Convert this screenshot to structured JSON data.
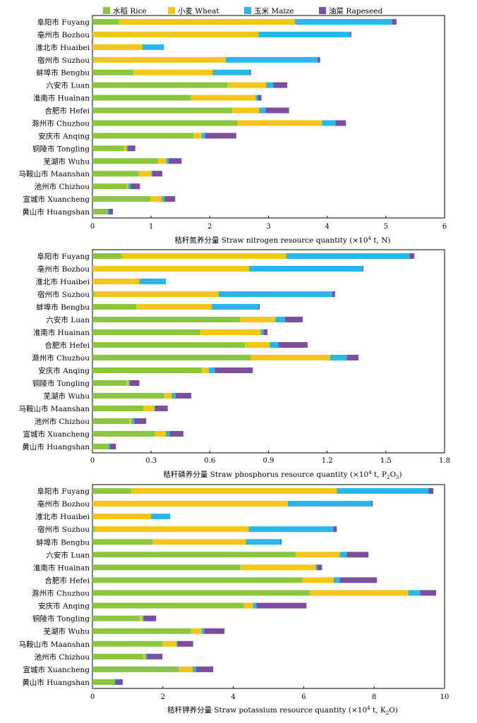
{
  "legend": [
    {
      "label": "水稻 Rice",
      "color": "#8cc63f"
    },
    {
      "label": "小麦 Wheat",
      "color": "#f5c518"
    },
    {
      "label": "玉米 Maize",
      "color": "#29b6e8"
    },
    {
      "label": "油菜 Rapeseed",
      "color": "#7d4e9e"
    }
  ],
  "chart_data": [
    {
      "type": "bar",
      "orientation": "horizontal",
      "stacked": true,
      "xlabel_main": "秸秆氮养分量 Straw nitrogen resource quantity (×10",
      "xlabel_sup": "4",
      "xlabel_tail": " t, N)",
      "xlabel_sub": "",
      "xlabel_tail2": "",
      "xlim": [
        0,
        6
      ],
      "xticks": [
        "0",
        "1",
        "2",
        "3",
        "4",
        "5",
        "6"
      ],
      "categories": [
        "阜阳市 Fuyang",
        "亳州市 Bozhou",
        "淮北市 Huaibei",
        "宿州市 Suzhou",
        "蚌埠市 Bengbu",
        "六安市 Luan",
        "淮南市 Huainan",
        "合肥市 Hefei",
        "滁州市 Chuzhou",
        "安庆市 Anqing",
        "铜陵市 Tongling",
        "芜湖市 Wuhu",
        "马鞍山市 Maanshan",
        "池州市 Chizhou",
        "宣城市 Xuancheng",
        "黄山市 Huangshan"
      ],
      "series": [
        {
          "name": "水稻 Rice",
          "values": [
            0.45,
            0.0,
            0.0,
            0.02,
            0.7,
            2.3,
            1.68,
            2.38,
            2.47,
            1.72,
            0.54,
            1.12,
            0.79,
            0.58,
            0.98,
            0.25
          ]
        },
        {
          "name": "小麦 Wheat",
          "values": [
            3.0,
            2.83,
            0.85,
            2.25,
            1.35,
            0.66,
            1.1,
            0.46,
            1.44,
            0.14,
            0.04,
            0.14,
            0.21,
            0.03,
            0.2,
            0.0
          ]
        },
        {
          "name": "玉米 Maize",
          "values": [
            1.66,
            1.56,
            0.37,
            1.57,
            0.63,
            0.12,
            0.04,
            0.11,
            0.23,
            0.06,
            0.02,
            0.04,
            0.02,
            0.04,
            0.05,
            0.03
          ]
        },
        {
          "name": "油菜 Rapeseed",
          "values": [
            0.07,
            0.02,
            0.0,
            0.04,
            0.02,
            0.24,
            0.06,
            0.4,
            0.18,
            0.53,
            0.13,
            0.22,
            0.17,
            0.16,
            0.18,
            0.07
          ]
        }
      ]
    },
    {
      "type": "bar",
      "orientation": "horizontal",
      "stacked": true,
      "xlabel_main": "秸秆磷养分量 Straw phosphorus resource quantity (×10",
      "xlabel_sup": "4",
      "xlabel_tail": " t, P",
      "xlabel_sub": "2",
      "xlabel_tail2": "O",
      "xlabel_sub2": "5",
      "xlabel_end": ")",
      "xlim": [
        0,
        1.8
      ],
      "xticks": [
        "0",
        "0.3",
        "0.6",
        "0.9",
        "1.2",
        "1.5",
        "1.8"
      ],
      "categories": [
        "阜阳市 Fuyang",
        "亳州市 Bozhou",
        "淮北市 Huaibei",
        "宿州市 Suzhou",
        "蚌埠市 Bengbu",
        "六安市 Luan",
        "淮南市 Huainan",
        "合肥市 Hefei",
        "滁州市 Chuzhou",
        "安庆市 Anqing",
        "铜陵市 Tongling",
        "芜湖市 Wuhu",
        "马鞍山市 Maanshan",
        "池州市 Chizhou",
        "宣城市 Xuancheng",
        "黄山市 Huangshan"
      ],
      "series": [
        {
          "name": "水稻 Rice",
          "values": [
            0.15,
            0.0,
            0.0,
            0.01,
            0.225,
            0.755,
            0.55,
            0.78,
            0.81,
            0.56,
            0.175,
            0.365,
            0.26,
            0.19,
            0.32,
            0.08
          ]
        },
        {
          "name": "小麦 Wheat",
          "values": [
            0.84,
            0.8,
            0.24,
            0.635,
            0.385,
            0.18,
            0.31,
            0.125,
            0.405,
            0.035,
            0.01,
            0.04,
            0.055,
            0.01,
            0.055,
            0.0
          ]
        },
        {
          "name": "玉米 Maize",
          "values": [
            0.63,
            0.58,
            0.135,
            0.58,
            0.24,
            0.05,
            0.015,
            0.045,
            0.085,
            0.03,
            0.005,
            0.02,
            0.005,
            0.015,
            0.02,
            0.01
          ]
        },
        {
          "name": "油菜 Rapeseed",
          "values": [
            0.025,
            0.005,
            0.0,
            0.015,
            0.005,
            0.09,
            0.02,
            0.15,
            0.06,
            0.195,
            0.05,
            0.08,
            0.065,
            0.06,
            0.07,
            0.03
          ]
        }
      ]
    },
    {
      "type": "bar",
      "orientation": "horizontal",
      "stacked": true,
      "xlabel_main": "秸秆钾养分量 Straw potassium resource quantity (×10",
      "xlabel_sup": "4",
      "xlabel_tail": " t, K",
      "xlabel_sub": "2",
      "xlabel_tail2": "O)",
      "xlim": [
        0,
        10
      ],
      "xticks": [
        "0",
        "2",
        "4",
        "6",
        "8",
        "10"
      ],
      "categories": [
        "阜阳市 Fuyang",
        "亳州市 Bozhou",
        "淮北市 Huaibei",
        "宿州市 Suzhou",
        "蚌埠市 Bengbu",
        "六安市 Luan",
        "淮南市 Huainan",
        "合肥市 Hefei",
        "滁州市 Chuzhou",
        "安庆市 Anqing",
        "铜陵市 Tongling",
        "芜湖市 Wuhu",
        "马鞍山市 Maanshan",
        "池州市 Chizhou",
        "宣城市 Xuancheng",
        "黄山市 Huangshan"
      ],
      "series": [
        {
          "name": "水稻 Rice",
          "values": [
            1.1,
            0.0,
            0.0,
            0.07,
            1.72,
            5.77,
            4.2,
            5.96,
            6.17,
            4.29,
            1.34,
            2.8,
            1.99,
            1.44,
            2.46,
            0.62
          ]
        },
        {
          "name": "小麦 Wheat",
          "values": [
            5.84,
            5.55,
            1.66,
            4.37,
            2.64,
            1.25,
            2.14,
            0.89,
            2.8,
            0.27,
            0.08,
            0.3,
            0.4,
            0.06,
            0.39,
            0.0
          ]
        },
        {
          "name": "玉米 Maize",
          "values": [
            2.6,
            2.37,
            0.55,
            2.4,
            0.98,
            0.2,
            0.04,
            0.17,
            0.34,
            0.1,
            0.03,
            0.07,
            0.02,
            0.05,
            0.09,
            0.03
          ]
        },
        {
          "name": "油菜 Rapeseed",
          "values": [
            0.14,
            0.04,
            0.0,
            0.1,
            0.03,
            0.62,
            0.14,
            1.06,
            0.45,
            1.42,
            0.36,
            0.58,
            0.45,
            0.44,
            0.49,
            0.21
          ]
        }
      ]
    }
  ]
}
